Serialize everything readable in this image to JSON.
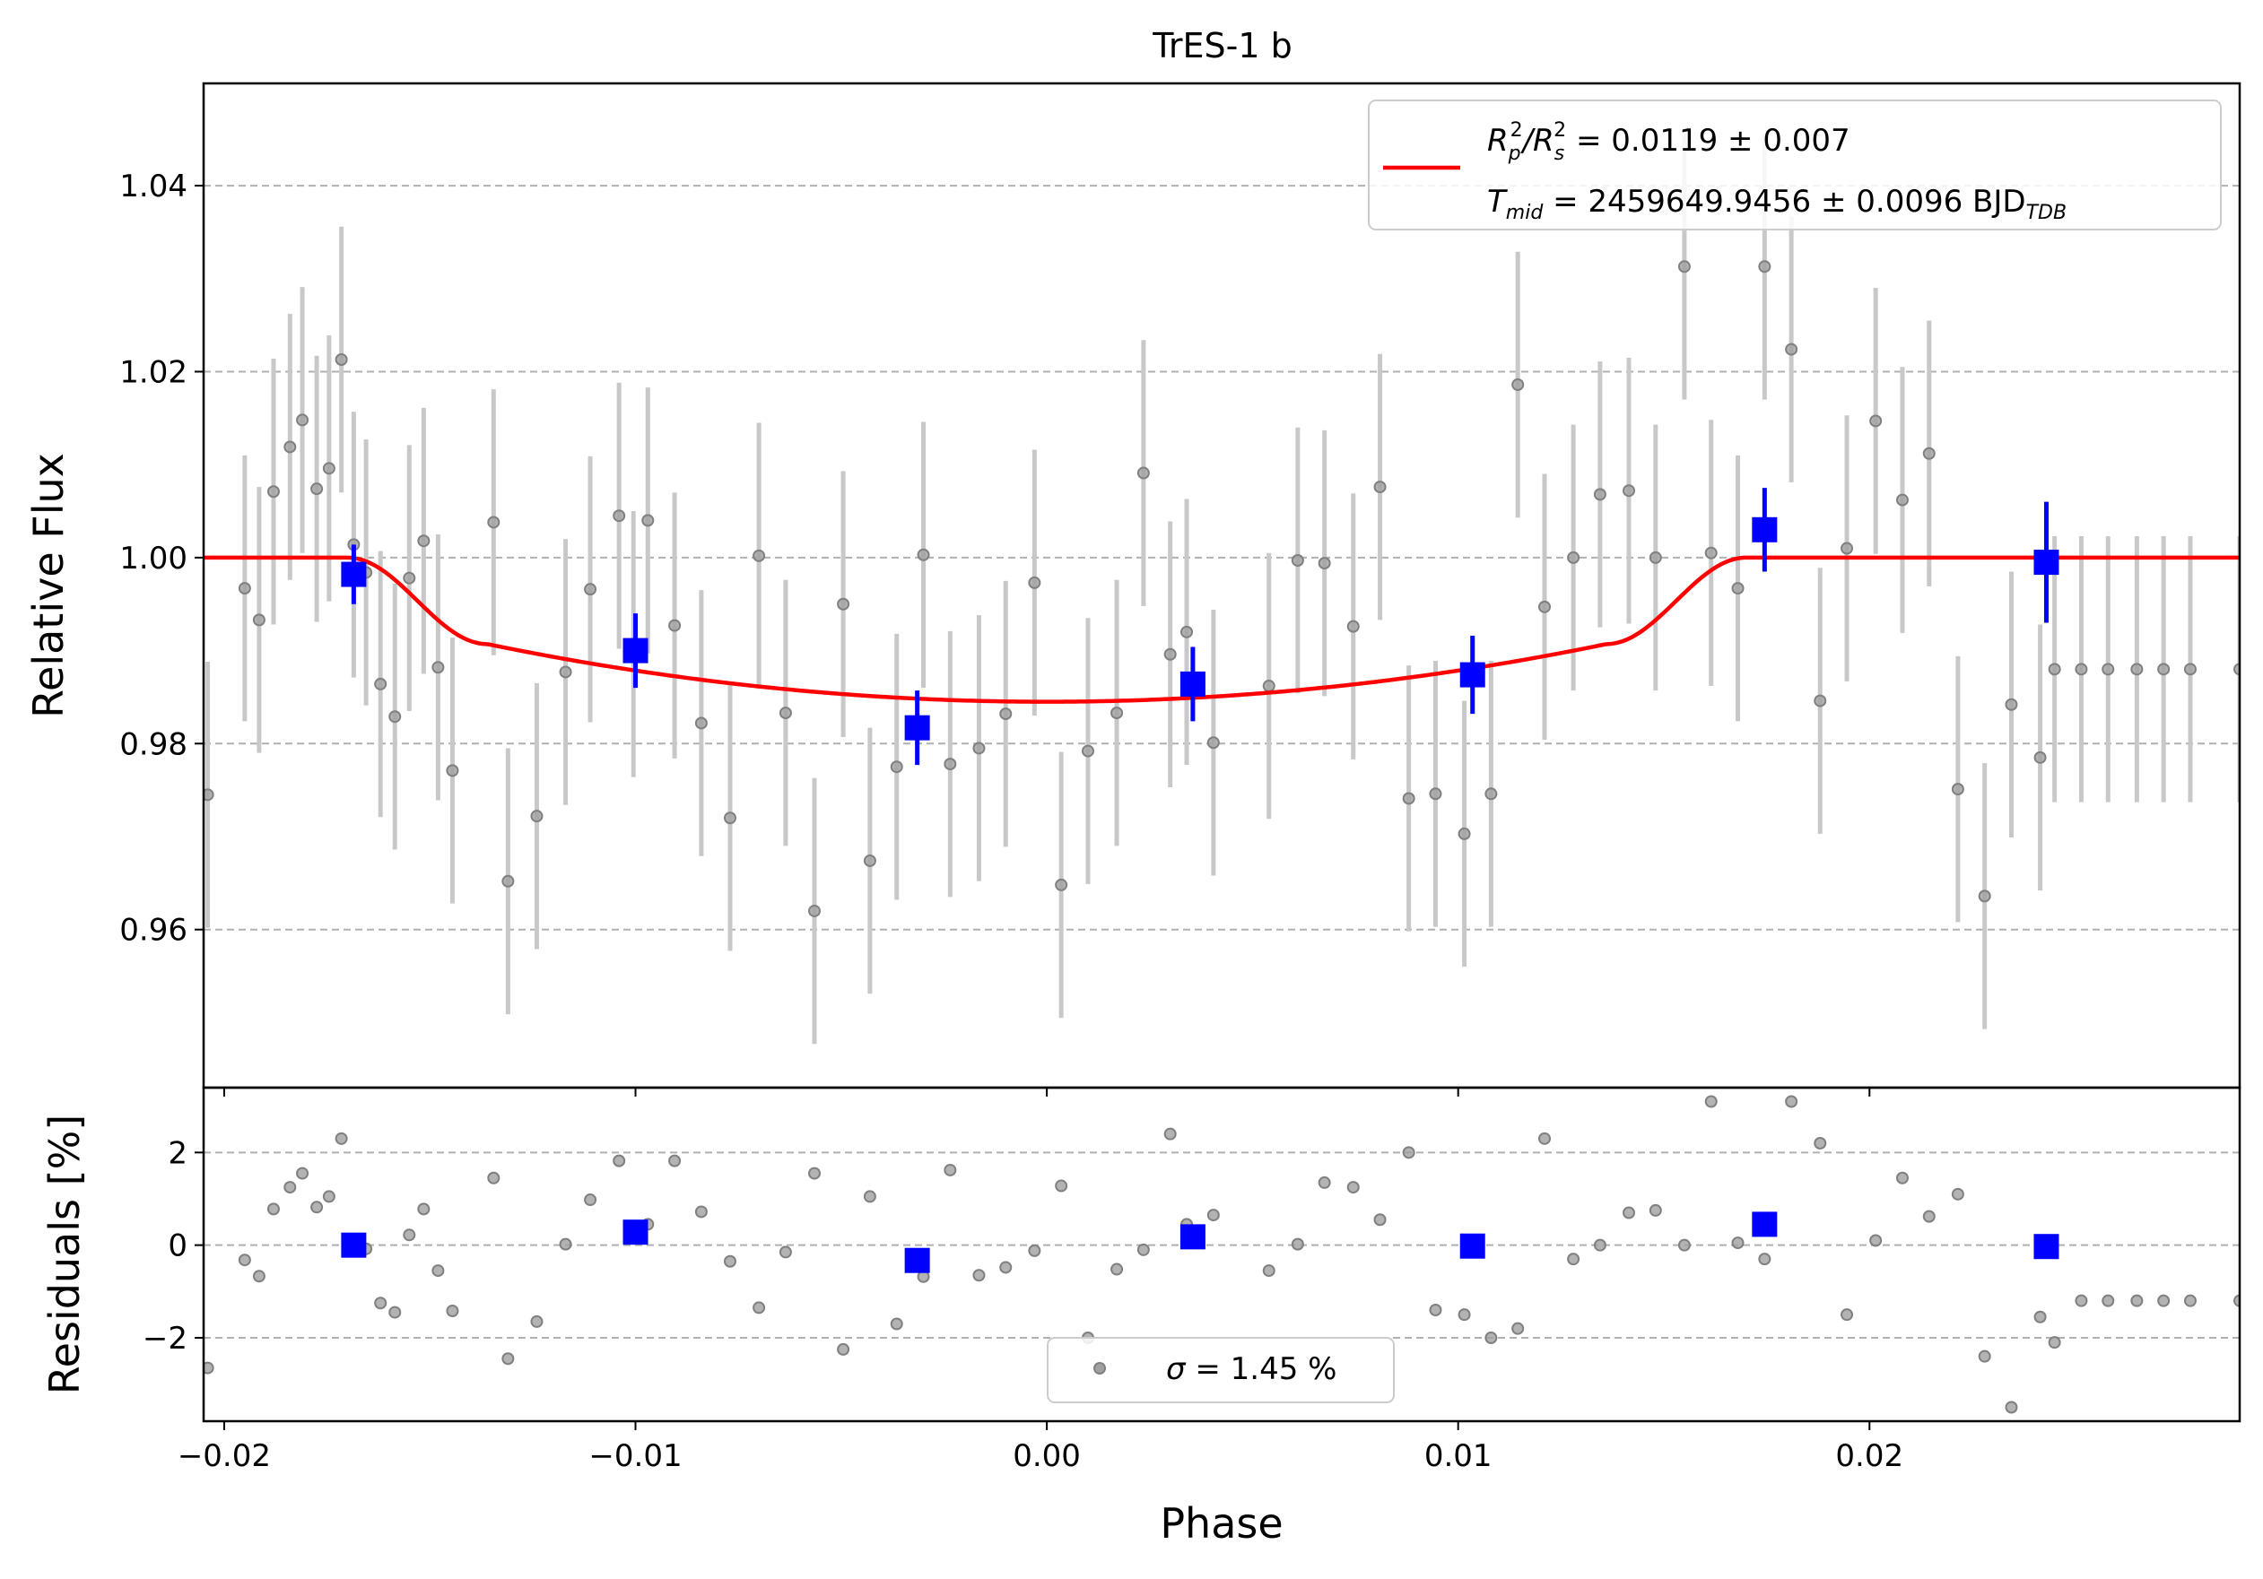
{
  "chart_data": [
    {
      "type": "scatter",
      "panel": "main",
      "title": "TrES-1 b",
      "xlabel": "",
      "ylabel": "Relative Flux",
      "xlim": [
        -0.0205,
        0.029
      ],
      "ylim": [
        0.943,
        1.051
      ],
      "xticks": [
        -0.02,
        -0.01,
        0.0,
        0.01,
        0.02
      ],
      "yticks": [
        0.96,
        0.98,
        1.0,
        1.02,
        1.04
      ],
      "ytick_labels": [
        "0.96",
        "0.98",
        "1.00",
        "1.02",
        "1.04"
      ],
      "grid": "horizontal dashed",
      "legend": {
        "placement": "top-right",
        "series": "model",
        "line1": {
          "r": "R",
          "r_sub": "p",
          "sep": "/R",
          "s_sub": "s",
          "sup": "2",
          "rest": " = 0.0119 ± 0.007"
        },
        "line2": {
          "t": "T",
          "t_sub": "mid",
          "rest": " = 2459649.9456 ± 0.0096 BJD",
          "unit_sub": "TDB"
        }
      },
      "colors": {
        "data": "#808080",
        "errorbar": "#c8c8c8",
        "binned": "#0000ff",
        "model": "#ff0000",
        "grid": "#b0b0b0"
      },
      "series": [
        {
          "kind": "data",
          "x": [
            -0.0204,
            -0.0195,
            -0.01915,
            -0.0188,
            -0.0184,
            -0.0181,
            -0.01775,
            -0.01745,
            -0.01715,
            -0.01685,
            -0.01655,
            -0.0162,
            -0.01585,
            -0.0155,
            -0.01515,
            -0.0148,
            -0.01445,
            -0.01345,
            -0.0131,
            -0.0124,
            -0.0117,
            -0.0111,
            -0.0104,
            -0.01005,
            -0.0097,
            -0.00905,
            -0.0084,
            -0.0077,
            -0.007,
            -0.00635,
            -0.00565,
            -0.00495,
            -0.0043,
            -0.00365,
            -0.003,
            -0.00235,
            -0.00165,
            -0.001,
            -0.0003,
            0.00035,
            0.001,
            0.0017,
            0.00235,
            0.003,
            0.0034,
            0.00405,
            0.0054,
            0.0061,
            0.00675,
            0.00745,
            0.0081,
            0.0088,
            0.00945,
            0.01015,
            0.0108,
            0.01145,
            0.0121,
            0.0128,
            0.01345,
            0.01415,
            0.0148,
            0.0155,
            0.01615,
            0.0168,
            0.01745,
            0.0181,
            0.0188,
            0.01945,
            0.02015,
            0.0208,
            0.02145,
            0.02215,
            0.0228,
            0.02345,
            0.02415,
            0.0245,
            0.02515,
            0.0258,
            0.0265,
            0.02715,
            0.0278,
            0.029
          ],
          "y": [
            0.9745,
            0.9967,
            0.9933,
            1.0071,
            1.0119,
            1.0148,
            1.0074,
            1.0096,
            1.0213,
            1.0014,
            0.9984,
            0.9864,
            0.9829,
            0.9978,
            1.0018,
            0.9882,
            0.9771,
            1.0038,
            0.9652,
            0.9722,
            0.9877,
            0.9966,
            1.0045,
            0.9907,
            1.004,
            0.9927,
            0.9822,
            0.972,
            1.0002,
            0.9833,
            0.962,
            0.995,
            0.9674,
            0.9775,
            1.0003,
            0.9778,
            0.9795,
            0.9832,
            0.9973,
            0.9648,
            0.9792,
            0.9833,
            1.0091,
            0.9896,
            0.992,
            0.9801,
            0.9862,
            0.9997,
            0.9994,
            0.9926,
            1.0076,
            0.9741,
            0.9746,
            0.9703,
            0.9746,
            1.0186,
            0.9947,
            1.0,
            1.0068,
            1.0072,
            1.0,
            1.0313,
            1.0005,
            0.9967,
            1.0313,
            1.0224,
            0.9846,
            1.001,
            1.0147,
            1.0062,
            1.0112,
            0.9751,
            0.9636,
            0.9842,
            0.9785,
            0.988,
            0.988,
            0.988,
            0.988,
            0.988,
            0.988,
            0.988
          ],
          "yerr": 0.0143
        },
        {
          "kind": "binned",
          "x": [
            -0.01685,
            -0.01,
            -0.00315,
            0.00355,
            0.01035,
            0.01745,
            0.0243
          ],
          "y": [
            0.9982,
            0.99,
            0.9817,
            0.9864,
            0.9874,
            1.003,
            0.9995
          ],
          "yerr": [
            0.0032,
            0.004,
            0.004,
            0.004,
            0.0042,
            0.0045,
            0.0065
          ]
        },
        {
          "kind": "model",
          "name": "model",
          "depth": 0.0155,
          "t_contact1": -0.017,
          "t_contact2": -0.0136,
          "t_contact3": 0.0136,
          "t_contact4": 0.017
        }
      ]
    },
    {
      "type": "scatter",
      "panel": "residuals",
      "xlabel": "Phase",
      "ylabel": "Residuals [%]",
      "xlim": [
        -0.0205,
        0.029
      ],
      "ylim": [
        -3.8,
        3.4
      ],
      "xticks": [
        -0.02,
        -0.01,
        0.0,
        0.01,
        0.02
      ],
      "xtick_labels": [
        "−0.02",
        "−0.01",
        "0.00",
        "0.01",
        "0.02"
      ],
      "yticks": [
        -2,
        0,
        2
      ],
      "ytick_labels": [
        "−2",
        "0",
        "2"
      ],
      "grid": "horizontal dashed",
      "legend": {
        "placement": "bottom-center",
        "label_pre": "σ",
        "label_rest": " = 1.45 %"
      },
      "series": [
        {
          "kind": "data",
          "x": [
            -0.0204,
            -0.0195,
            -0.01915,
            -0.0188,
            -0.0184,
            -0.0181,
            -0.01775,
            -0.01745,
            -0.01715,
            -0.01655,
            -0.0162,
            -0.01585,
            -0.0155,
            -0.01515,
            -0.0148,
            -0.01445,
            -0.01345,
            -0.0131,
            -0.0124,
            -0.0117,
            -0.0111,
            -0.0104,
            -0.0097,
            -0.00905,
            -0.0084,
            -0.0077,
            -0.007,
            -0.00635,
            -0.00565,
            -0.00495,
            -0.0043,
            -0.00365,
            -0.003,
            -0.00235,
            -0.00165,
            -0.001,
            -0.0003,
            0.00035,
            0.001,
            0.0017,
            0.00235,
            0.003,
            0.0034,
            0.00405,
            0.0054,
            0.0061,
            0.00675,
            0.00745,
            0.0081,
            0.0088,
            0.00945,
            0.01015,
            0.0108,
            0.01145,
            0.0121,
            0.0128,
            0.01345,
            0.01415,
            0.0148,
            0.0155,
            0.01615,
            0.0168,
            0.01745,
            0.0181,
            0.0188,
            0.01945,
            0.02015,
            0.0208,
            0.02145,
            0.02215,
            0.0228,
            0.02345,
            0.02415,
            0.0245,
            0.02515,
            0.0258,
            0.0265,
            0.02715,
            0.0278,
            0.029
          ],
          "y": [
            -2.65,
            -0.32,
            -0.67,
            0.78,
            1.25,
            1.55,
            0.82,
            1.05,
            2.3,
            -0.08,
            -1.25,
            -1.45,
            0.22,
            0.78,
            -0.55,
            -1.42,
            1.45,
            -2.45,
            -1.65,
            0.02,
            0.98,
            1.82,
            0.45,
            1.82,
            0.72,
            -0.35,
            -1.35,
            -0.15,
            1.55,
            -2.25,
            1.05,
            -1.7,
            -0.68,
            1.62,
            -0.65,
            -0.48,
            -0.12,
            1.28,
            -2.0,
            -0.52,
            -0.1,
            2.4,
            0.45,
            0.65,
            -0.55,
            0.02,
            1.35,
            1.25,
            0.55,
            2.0,
            -1.4,
            -1.5,
            -2.0,
            -1.8,
            2.3,
            -0.3,
            0.0,
            0.7,
            0.75,
            0.0,
            3.1,
            0.05,
            -0.3,
            3.1,
            2.2,
            -1.5,
            0.1,
            1.45,
            0.62,
            1.1,
            -2.4,
            -3.5,
            -1.55,
            -2.1,
            -1.2,
            -1.2,
            -1.2,
            -1.2,
            -1.2,
            -1.2
          ]
        },
        {
          "kind": "binned",
          "x": [
            -0.01685,
            -0.01,
            -0.00315,
            0.00355,
            0.01035,
            0.01745,
            0.0243
          ],
          "y": [
            0.0,
            0.28,
            -0.33,
            0.18,
            -0.02,
            0.45,
            -0.03
          ]
        }
      ]
    }
  ]
}
